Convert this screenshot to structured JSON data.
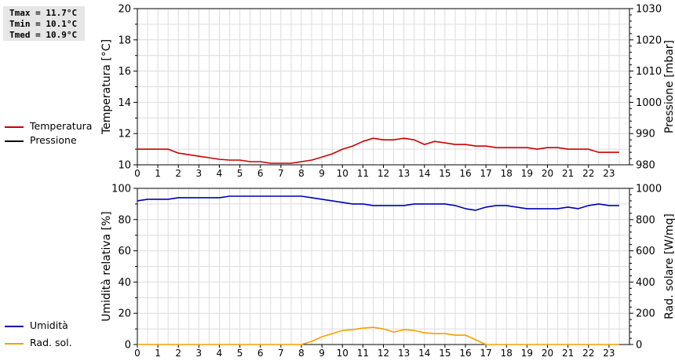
{
  "stats": {
    "tmax": "Tmax = 11.7°C",
    "tmin": "Tmin = 10.1°C",
    "tmed": "Tmed = 10.9°C"
  },
  "legend_top": [
    {
      "label": "Temperatura",
      "color": "#cc0000"
    },
    {
      "label": "Pressione",
      "color": "#000000"
    }
  ],
  "legend_bottom": [
    {
      "label": "Umidità",
      "color": "#0000bb"
    },
    {
      "label": "Rad. sol.",
      "color": "#f5a000"
    }
  ],
  "chart_data": [
    {
      "type": "line",
      "ylabel": "Temperatura [°C]",
      "y2label": "Pressione [mbar]",
      "xlim": [
        0,
        24
      ],
      "ylim": [
        10,
        20
      ],
      "y2lim": [
        980,
        1030
      ],
      "xticks": [
        "0",
        "1",
        "2",
        "3",
        "4",
        "5",
        "6",
        "7",
        "8",
        "9",
        "10",
        "11",
        "12",
        "13",
        "14",
        "15",
        "16",
        "17",
        "18",
        "19",
        "20",
        "21",
        "22",
        "23"
      ],
      "yticks": [
        "10",
        "12",
        "14",
        "16",
        "18",
        "20"
      ],
      "y2ticks": [
        "980",
        "990",
        "1000",
        "1010",
        "1020",
        "1030"
      ],
      "grid": true,
      "series": [
        {
          "name": "Temperatura",
          "color": "#cc0000",
          "axis": "left",
          "points": [
            [
              0,
              11.0
            ],
            [
              0.5,
              11.0
            ],
            [
              1,
              11.0
            ],
            [
              1.5,
              11.0
            ],
            [
              2,
              10.75
            ],
            [
              2.5,
              10.65
            ],
            [
              3,
              10.55
            ],
            [
              3.5,
              10.45
            ],
            [
              4,
              10.35
            ],
            [
              4.5,
              10.3
            ],
            [
              5,
              10.3
            ],
            [
              5.5,
              10.2
            ],
            [
              6,
              10.2
            ],
            [
              6.5,
              10.1
            ],
            [
              7,
              10.1
            ],
            [
              7.5,
              10.1
            ],
            [
              8,
              10.2
            ],
            [
              8.5,
              10.3
            ],
            [
              9,
              10.5
            ],
            [
              9.5,
              10.7
            ],
            [
              10,
              11.0
            ],
            [
              10.5,
              11.2
            ],
            [
              11,
              11.5
            ],
            [
              11.5,
              11.7
            ],
            [
              12,
              11.6
            ],
            [
              12.5,
              11.6
            ],
            [
              13,
              11.7
            ],
            [
              13.5,
              11.6
            ],
            [
              14,
              11.3
            ],
            [
              14.5,
              11.5
            ],
            [
              15,
              11.4
            ],
            [
              15.5,
              11.3
            ],
            [
              16,
              11.3
            ],
            [
              16.5,
              11.2
            ],
            [
              17,
              11.2
            ],
            [
              17.5,
              11.1
            ],
            [
              18,
              11.1
            ],
            [
              18.5,
              11.1
            ],
            [
              19,
              11.1
            ],
            [
              19.5,
              11.0
            ],
            [
              20,
              11.1
            ],
            [
              20.5,
              11.1
            ],
            [
              21,
              11.0
            ],
            [
              21.5,
              11.0
            ],
            [
              22,
              11.0
            ],
            [
              22.5,
              10.8
            ],
            [
              23,
              10.8
            ],
            [
              23.5,
              10.8
            ]
          ]
        }
      ]
    },
    {
      "type": "line",
      "ylabel": "Umidità relativa [%]",
      "y2label": "Rad. solare [W/mq]",
      "xlim": [
        0,
        24
      ],
      "ylim": [
        0,
        100
      ],
      "y2lim": [
        0,
        1000
      ],
      "xticks": [
        "0",
        "1",
        "2",
        "3",
        "4",
        "5",
        "6",
        "7",
        "8",
        "9",
        "10",
        "11",
        "12",
        "13",
        "14",
        "15",
        "16",
        "17",
        "18",
        "19",
        "20",
        "21",
        "22",
        "23"
      ],
      "yticks": [
        "0",
        "20",
        "40",
        "60",
        "80",
        "100"
      ],
      "y2ticks": [
        "0",
        "200",
        "400",
        "600",
        "800",
        "1000"
      ],
      "grid": true,
      "series": [
        {
          "name": "Umidità",
          "color": "#0000bb",
          "axis": "left",
          "points": [
            [
              0,
              92
            ],
            [
              0.5,
              93
            ],
            [
              1,
              93
            ],
            [
              1.5,
              93
            ],
            [
              2,
              94
            ],
            [
              2.5,
              94
            ],
            [
              3,
              94
            ],
            [
              3.5,
              94
            ],
            [
              4,
              94
            ],
            [
              4.5,
              95
            ],
            [
              5,
              95
            ],
            [
              5.5,
              95
            ],
            [
              6,
              95
            ],
            [
              6.5,
              95
            ],
            [
              7,
              95
            ],
            [
              7.5,
              95
            ],
            [
              8,
              95
            ],
            [
              8.5,
              94
            ],
            [
              9,
              93
            ],
            [
              9.5,
              92
            ],
            [
              10,
              91
            ],
            [
              10.5,
              90
            ],
            [
              11,
              90
            ],
            [
              11.5,
              89
            ],
            [
              12,
              89
            ],
            [
              12.5,
              89
            ],
            [
              13,
              89
            ],
            [
              13.5,
              90
            ],
            [
              14,
              90
            ],
            [
              14.5,
              90
            ],
            [
              15,
              90
            ],
            [
              15.5,
              89
            ],
            [
              16,
              87
            ],
            [
              16.5,
              86
            ],
            [
              17,
              88
            ],
            [
              17.5,
              89
            ],
            [
              18,
              89
            ],
            [
              18.5,
              88
            ],
            [
              19,
              87
            ],
            [
              19.5,
              87
            ],
            [
              20,
              87
            ],
            [
              20.5,
              87
            ],
            [
              21,
              88
            ],
            [
              21.5,
              87
            ],
            [
              22,
              89
            ],
            [
              22.5,
              90
            ],
            [
              23,
              89
            ],
            [
              23.5,
              89
            ]
          ]
        },
        {
          "name": "Rad. sol.",
          "color": "#f5a000",
          "axis": "right",
          "points": [
            [
              0,
              0
            ],
            [
              0.5,
              0
            ],
            [
              1,
              0
            ],
            [
              1.5,
              0
            ],
            [
              2,
              0
            ],
            [
              2.5,
              0
            ],
            [
              3,
              0
            ],
            [
              3.5,
              0
            ],
            [
              4,
              0
            ],
            [
              4.5,
              0
            ],
            [
              5,
              0
            ],
            [
              5.5,
              0
            ],
            [
              6,
              0
            ],
            [
              6.5,
              0
            ],
            [
              7,
              0
            ],
            [
              7.5,
              0
            ],
            [
              8,
              0
            ],
            [
              8.5,
              20
            ],
            [
              9,
              50
            ],
            [
              9.5,
              70
            ],
            [
              10,
              90
            ],
            [
              10.5,
              95
            ],
            [
              11,
              105
            ],
            [
              11.5,
              110
            ],
            [
              12,
              100
            ],
            [
              12.5,
              80
            ],
            [
              13,
              95
            ],
            [
              13.5,
              90
            ],
            [
              14,
              75
            ],
            [
              14.5,
              70
            ],
            [
              15,
              70
            ],
            [
              15.5,
              60
            ],
            [
              16,
              60
            ],
            [
              16.5,
              30
            ],
            [
              17,
              0
            ],
            [
              17.5,
              0
            ],
            [
              18,
              0
            ],
            [
              18.5,
              0
            ],
            [
              19,
              0
            ],
            [
              19.5,
              0
            ],
            [
              20,
              0
            ],
            [
              20.5,
              0
            ],
            [
              21,
              0
            ],
            [
              21.5,
              0
            ],
            [
              22,
              0
            ],
            [
              22.5,
              0
            ],
            [
              23,
              0
            ],
            [
              23.5,
              0
            ]
          ]
        }
      ]
    }
  ]
}
